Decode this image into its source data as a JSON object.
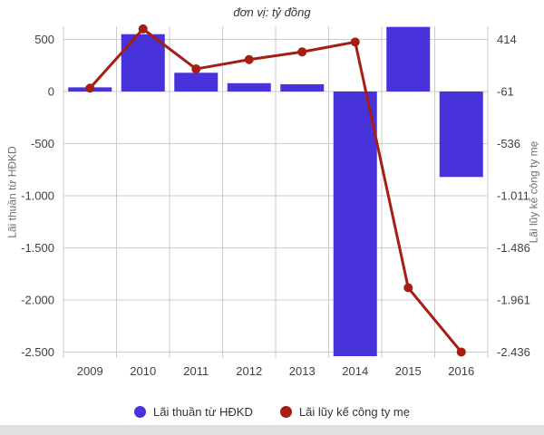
{
  "chart_data": {
    "type": "combo-bar-line",
    "title": "đơn vị: tỷ đồng",
    "categories": [
      "2009",
      "2010",
      "2011",
      "2012",
      "2013",
      "2014",
      "2015",
      "2016"
    ],
    "series": [
      {
        "name": "Lãi thuần từ HĐKD",
        "type": "bar",
        "axis": "left",
        "color": "#4733d9",
        "values": [
          40,
          550,
          180,
          80,
          70,
          -2540,
          620,
          -820
        ]
      },
      {
        "name": "Lãi lũy kế công ty mẹ",
        "type": "line",
        "axis": "right",
        "color": "#a61d12",
        "values": [
          -30,
          510,
          145,
          230,
          300,
          390,
          -1850,
          -2436
        ]
      }
    ],
    "left_axis": {
      "title": "Lãi thuần từ HĐKD",
      "ticks": [
        500,
        0,
        -500,
        -1000,
        -1500,
        -2000,
        -2500
      ],
      "tick_labels": [
        "500",
        "0",
        "-500",
        "-1.000",
        "-1.500",
        "-2.000",
        "-2.500"
      ],
      "range": [
        -2557,
        626
      ]
    },
    "right_axis": {
      "title": "Lãi lũy kế công ty mẹ",
      "ticks": [
        414,
        -61,
        -536,
        -1011,
        -1486,
        -1961,
        -2436
      ],
      "tick_labels": [
        "414",
        "-61",
        "-536",
        "-1.011",
        "-1.486",
        "-1.961",
        "-2.436"
      ]
    },
    "grid": {
      "show": true,
      "color": "#cccccc"
    },
    "legend_position": "bottom",
    "colors": {
      "background": "#ffffff",
      "title_text": "#333333",
      "tick_text": "#404040",
      "axis_title_text": "#6e6e6e",
      "legend_text": "#333333",
      "bottom_strip": "#e0e0e0"
    }
  }
}
